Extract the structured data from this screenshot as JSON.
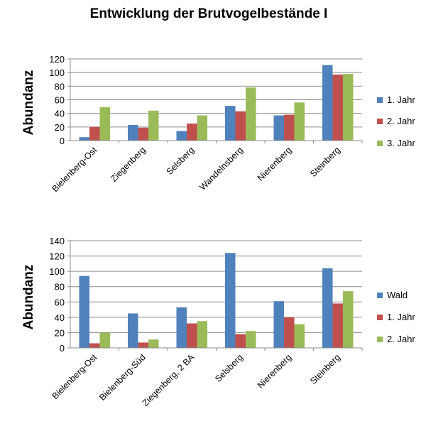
{
  "title": "Entwicklung der Brutvogelbestände I",
  "colors": {
    "blue": "#4f81bd",
    "red": "#c0504d",
    "green": "#9bbb59"
  },
  "chart_data": [
    {
      "type": "bar",
      "ylabel": "Abundanz",
      "ylim": [
        0,
        120
      ],
      "yticks": [
        0,
        20,
        40,
        60,
        80,
        100,
        120
      ],
      "grid": true,
      "legend_position": "right",
      "categories": [
        "Bielenberg-Ost",
        "Ziegenberg",
        "Selsberg",
        "Wandelnsberg",
        "Nierenberg",
        "Steinberg"
      ],
      "series": [
        {
          "name": "1. Jahr",
          "color": "#4f81bd",
          "values": [
            5,
            23,
            14,
            51,
            37,
            111
          ]
        },
        {
          "name": "2. Jahr",
          "color": "#c0504d",
          "values": [
            20,
            19,
            25,
            43,
            38,
            97
          ]
        },
        {
          "name": "3. Jahr",
          "color": "#9bbb59",
          "values": [
            49,
            44,
            37,
            78,
            56,
            98
          ]
        }
      ]
    },
    {
      "type": "bar",
      "ylabel": "Abundanz",
      "ylim": [
        0,
        140
      ],
      "yticks": [
        0,
        20,
        40,
        60,
        80,
        100,
        120,
        140
      ],
      "grid": true,
      "legend_position": "right",
      "categories": [
        "Bielenberg-Ost",
        "Bielenberg-Süd",
        "Ziegenberg, 2 BA",
        "Selsberg",
        "Nierenberg",
        "Steinberg"
      ],
      "series": [
        {
          "name": "Wald",
          "color": "#4f81bd",
          "values": [
            94,
            45,
            53,
            124,
            61,
            104
          ]
        },
        {
          "name": "1. Jahr",
          "color": "#c0504d",
          "values": [
            6,
            7,
            32,
            18,
            40,
            58
          ]
        },
        {
          "name": "2. Jahr",
          "color": "#9bbb59",
          "values": [
            20,
            11,
            35,
            22,
            31,
            74
          ]
        }
      ]
    }
  ]
}
